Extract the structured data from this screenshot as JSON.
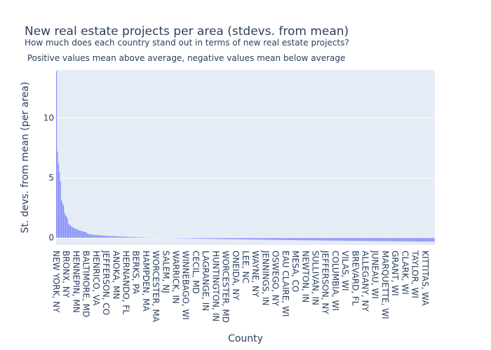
{
  "chart_data": {
    "type": "bar",
    "title": "New real estate projects per area (stdevs. from mean)",
    "subtitle_lines": [
      "How much does each country stand out in terms of new real estate projects?",
      " Positive values mean above average, negative values mean below average"
    ],
    "xlabel": "County",
    "ylabel": "St. devs. from mean (per area)",
    "ylim": [
      -0.6,
      14.0
    ],
    "yticks": [
      0,
      5,
      10
    ],
    "grid": true,
    "bar_color": "#636efa",
    "plot_bg": "#e5ecf6",
    "categories_visible_labels": [
      "NEW YORK, NY",
      "BRONX, NY",
      "HENNEPIN, MN",
      "BALTIMORE, MD",
      "HENRICO, VA",
      "JEFFERSON, CO",
      "ANOKA, MN",
      "HERNANDO, FL",
      "BERKS, PA",
      "HAMPDEN, MA",
      "WORCESTER, MA",
      "SALEM, NJ",
      "WARRICK, IN",
      "WINNEBAGO, WI",
      "CECIL, MD",
      "LAGRANGE, IN",
      "HUNTINGTON, IN",
      "WORCESTER, MD",
      "ONEIDA, NY",
      "LEE, NC",
      "WAYNE, NY",
      "JENNINGS, IN",
      "OSWEGO, NY",
      "EAU CLAIRE, WI",
      "MESA, CO",
      "NEWTON, IN",
      "SULLIVAN, IN",
      "JEFFERSON, NY",
      "COLUMBIA, WI",
      "VILAS, WI",
      "BREVARD, FL",
      "ALLEGANY, NY",
      "JUNEAU, WI",
      "MARQUETTE, WI",
      "GRANT, WI",
      "CLARK, WI",
      "TAYLOR, WI",
      "KITTITAS, WA"
    ],
    "series": [
      {
        "values_head": [
          13.9,
          7.2,
          6.2,
          5.5,
          4.7,
          3.2,
          2.9,
          2.7,
          2.1,
          1.9,
          1.8,
          1.6,
          1.2,
          1.1,
          1.0,
          0.95,
          0.9,
          0.85,
          0.8,
          0.75,
          0.72,
          0.68,
          0.65,
          0.62,
          0.6,
          0.57,
          0.55,
          0.52,
          0.5,
          0.48
        ],
        "tail_start": 0.45,
        "tail_end": -0.32,
        "total_bars": 380
      }
    ]
  }
}
